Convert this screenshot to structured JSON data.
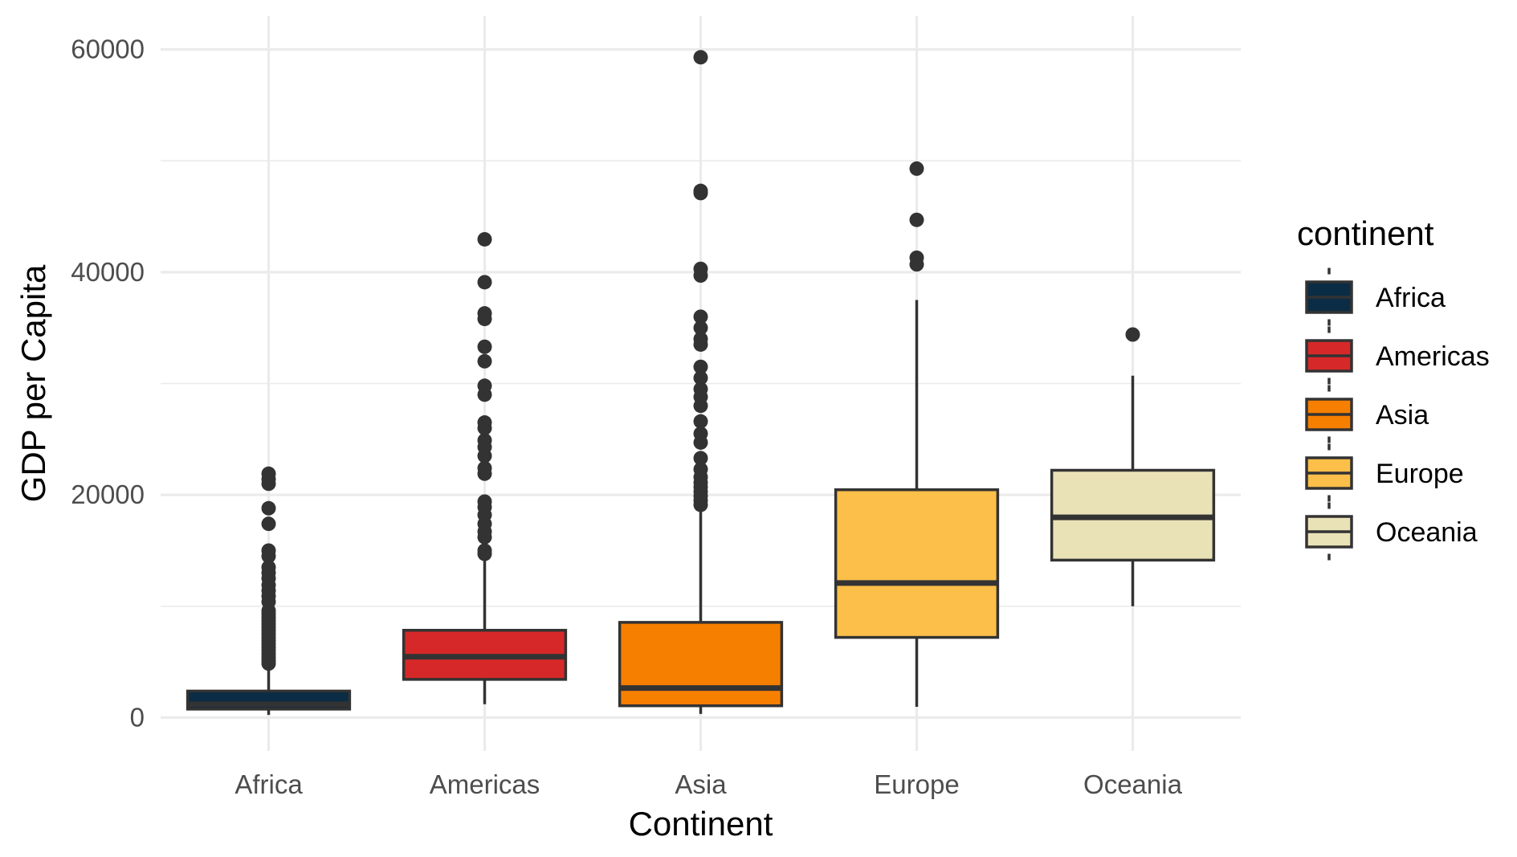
{
  "chart_data": {
    "type": "box",
    "xlabel": "Continent",
    "ylabel": "GDP per Capita",
    "ylim": [
      -3000,
      63000
    ],
    "y_ticks": [
      "0",
      "20000",
      "40000",
      "60000"
    ],
    "y_tick_values": [
      0,
      20000,
      40000,
      60000
    ],
    "y_minor_values": [
      10000,
      30000,
      50000
    ],
    "grid": true,
    "categories": [
      "Africa",
      "Americas",
      "Asia",
      "Europe",
      "Oceania"
    ],
    "colors": {
      "Africa": "#0b2c45",
      "Americas": "#d62828",
      "Asia": "#f77f00",
      "Europe": "#fcbf49",
      "Oceania": "#eae2b7"
    },
    "series": [
      {
        "category": "Africa",
        "whisker_low": 240,
        "q1": 760,
        "median": 1190,
        "q3": 2380,
        "whisker_high": 4700,
        "outliers": [
          4850,
          5100,
          5400,
          5700,
          6000,
          6300,
          6600,
          6900,
          7200,
          7500,
          7800,
          8100,
          8400,
          8700,
          9000,
          9300,
          9600,
          10400,
          10900,
          11400,
          11900,
          12500,
          13000,
          13500,
          14500,
          15000,
          17400,
          18800,
          21000,
          21400,
          21900
        ]
      },
      {
        "category": "Americas",
        "whisker_low": 1200,
        "q1": 3430,
        "median": 5470,
        "q3": 7840,
        "whisker_high": 14300,
        "outliers": [
          14700,
          15000,
          16200,
          16700,
          17400,
          18200,
          18900,
          19400,
          21900,
          22400,
          23500,
          24300,
          24900,
          26000,
          26500,
          29000,
          29800,
          32000,
          33300,
          35800,
          36300,
          39100,
          42950
        ]
      },
      {
        "category": "Asia",
        "whisker_low": 330,
        "q1": 1060,
        "median": 2650,
        "q3": 8550,
        "whisker_high": 18900,
        "outliers": [
          19100,
          19500,
          19900,
          20300,
          20700,
          21100,
          21600,
          22300,
          23300,
          24700,
          25500,
          26600,
          28000,
          28800,
          29500,
          30500,
          31500,
          33500,
          34000,
          35000,
          36000,
          39700,
          40300,
          47100,
          47300,
          59300
        ]
      },
      {
        "category": "Europe",
        "whisker_low": 970,
        "q1": 7200,
        "median": 12080,
        "q3": 20460,
        "whisker_high": 37500,
        "outliers": [
          40700,
          41300,
          44700,
          49300
        ]
      },
      {
        "category": "Oceania",
        "whisker_low": 10000,
        "q1": 14140,
        "median": 17980,
        "q3": 22210,
        "whisker_high": 30700,
        "outliers": [
          34400
        ]
      }
    ],
    "legend": {
      "title": "continent",
      "position": "right",
      "items": [
        "Africa",
        "Americas",
        "Asia",
        "Europe",
        "Oceania"
      ]
    }
  }
}
